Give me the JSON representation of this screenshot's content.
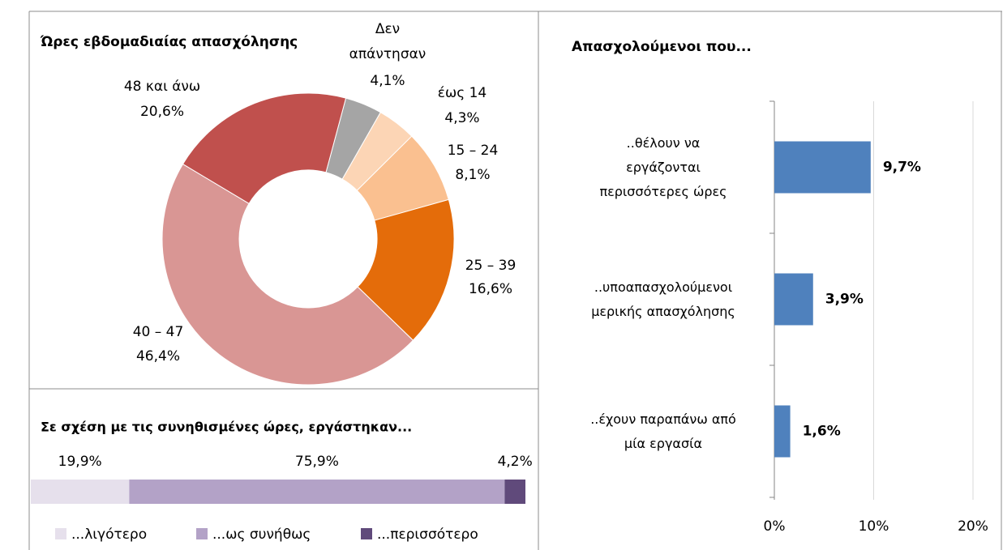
{
  "chart_data": [
    {
      "type": "pie",
      "title": "Ώρες εβδομαδιαίας απασχόλησης",
      "categories": [
        "Δεν απάντησαν",
        "έως 14",
        "15 – 24",
        "25 – 39",
        "40 – 47",
        "48 και άνω"
      ],
      "values": [
        4.1,
        4.3,
        8.1,
        16.6,
        46.4,
        20.6
      ],
      "value_labels": [
        "4,1%",
        "4,3%",
        "8,1%",
        "16,6%",
        "46,4%",
        "20,6%"
      ],
      "colors": [
        "#a5a5a5",
        "#fcd5b5",
        "#fac090",
        "#e46c0a",
        "#d99694",
        "#c0504d"
      ]
    },
    {
      "type": "stacked_bar",
      "title": "Σε σχέση με τις συνηθισμένες ώρες, εργάστηκαν...",
      "series": [
        {
          "name": "...λιγότερο",
          "color": "#e6e0ec",
          "values": [
            19.9
          ],
          "value_labels": [
            "19,9%"
          ]
        },
        {
          "name": "...ως συνήθως",
          "color": "#b3a2c7",
          "values": [
            75.9
          ],
          "value_labels": [
            "75,9%"
          ]
        },
        {
          "name": "...περισσότερο",
          "color": "#604a7b",
          "values": [
            4.2
          ],
          "value_labels": [
            "4,2%"
          ]
        }
      ],
      "legend": "bottom"
    },
    {
      "type": "hbar",
      "title": "Απασχολούμενοι που...",
      "categories": [
        "..θέλουν να εργάζονται περισσότερες ώρες",
        "..υποαπασχολούμενοι μερικής απασχόλησης",
        "..έχουν παραπάνω από μία εργασία"
      ],
      "values": [
        9.7,
        3.9,
        1.6
      ],
      "value_labels": [
        "9,7%",
        "3,9%",
        "1,6%"
      ],
      "color": "#4f81bd",
      "xlim": [
        0,
        20
      ],
      "xticks": [
        {
          "value": 0,
          "label": "0%"
        },
        {
          "value": 10,
          "label": "10%"
        },
        {
          "value": 20,
          "label": "20%"
        }
      ],
      "grid": true
    }
  ]
}
